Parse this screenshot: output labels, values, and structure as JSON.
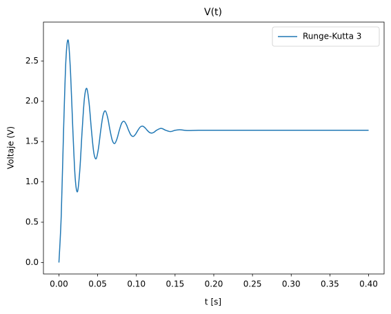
{
  "chart_data": {
    "type": "line",
    "title": "V(t)",
    "xlabel": "t [s]",
    "ylabel": "Voltaje (V)",
    "xlim": [
      -0.02,
      0.42
    ],
    "ylim": [
      -0.142,
      2.982
    ],
    "xticks": [
      {
        "value": 0,
        "label": "0.00"
      },
      {
        "value": 0.05,
        "label": "0.05"
      },
      {
        "value": 0.1,
        "label": "0.10"
      },
      {
        "value": 0.15,
        "label": "0.15"
      },
      {
        "value": 0.2,
        "label": "0.20"
      },
      {
        "value": 0.25,
        "label": "0.25"
      },
      {
        "value": 0.3,
        "label": "0.30"
      },
      {
        "value": 0.35,
        "label": "0.35"
      },
      {
        "value": 0.4,
        "label": "0.40"
      }
    ],
    "yticks": [
      {
        "value": 0,
        "label": "0.0"
      },
      0.5,
      {
        "value": 1,
        "label": "1.0"
      },
      1.5,
      {
        "value": 2,
        "label": "2.0"
      },
      2.5
    ],
    "grid": false,
    "legend": "upper right",
    "x": [
      0,
      0.003,
      0.006,
      0.009,
      0.012,
      0.015,
      0.018,
      0.021,
      0.024,
      0.027,
      0.03,
      0.033,
      0.036,
      0.039,
      0.042,
      0.045,
      0.048,
      0.051,
      0.054,
      0.057,
      0.06,
      0.063,
      0.066,
      0.069,
      0.072,
      0.075,
      0.078,
      0.081,
      0.084,
      0.087,
      0.09,
      0.093,
      0.096,
      0.099,
      0.102,
      0.105,
      0.108,
      0.111,
      0.114,
      0.117,
      0.12,
      0.123,
      0.126,
      0.132,
      0.138,
      0.144,
      0.15,
      0.156,
      0.162,
      0.168,
      0.18,
      0.2,
      0.25,
      0.3,
      0.35,
      0.4
    ],
    "series": [
      {
        "name": "Runge-Kutta 3",
        "color": "#1f77b4",
        "values": [
          0,
          0.587,
          1.64,
          2.509,
          2.757,
          2.357,
          1.64,
          1.048,
          0.879,
          1.151,
          1.64,
          2.044,
          2.158,
          1.973,
          1.64,
          1.365,
          1.287,
          1.413,
          1.64,
          1.827,
          1.88,
          1.795,
          1.64,
          1.513,
          1.476,
          1.535,
          1.64,
          1.727,
          1.752,
          1.712,
          1.64,
          1.581,
          1.564,
          1.592,
          1.64,
          1.68,
          1.692,
          1.673,
          1.64,
          1.613,
          1.605,
          1.617,
          1.64,
          1.664,
          1.64,
          1.624,
          1.64,
          1.647,
          1.64,
          1.637,
          1.64,
          1.64,
          1.64,
          1.64,
          1.64,
          1.64
        ]
      }
    ]
  }
}
